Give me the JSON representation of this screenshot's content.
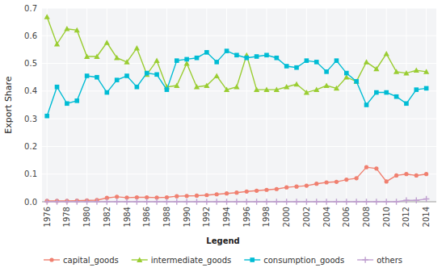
{
  "chart_data": {
    "type": "line",
    "ylabel": "Export Share",
    "x": [
      1976,
      1977,
      1978,
      1979,
      1980,
      1981,
      1982,
      1983,
      1984,
      1985,
      1986,
      1987,
      1988,
      1989,
      1990,
      1991,
      1992,
      1993,
      1994,
      1995,
      1996,
      1997,
      1998,
      1999,
      2000,
      2001,
      2002,
      2003,
      2004,
      2005,
      2006,
      2007,
      2008,
      2009,
      2010,
      2011,
      2012,
      2013,
      2014
    ],
    "series": [
      {
        "name": "capital_goods",
        "color": "#f08070",
        "marker": "circle",
        "values": [
          0.003,
          0.003,
          0.003,
          0.004,
          0.005,
          0.006,
          0.014,
          0.018,
          0.015,
          0.016,
          0.016,
          0.015,
          0.016,
          0.02,
          0.021,
          0.022,
          0.024,
          0.027,
          0.03,
          0.033,
          0.037,
          0.04,
          0.043,
          0.046,
          0.052,
          0.055,
          0.058,
          0.065,
          0.07,
          0.072,
          0.08,
          0.085,
          0.125,
          0.12,
          0.073,
          0.095,
          0.1,
          0.095,
          0.1
        ]
      },
      {
        "name": "intermediate_goods",
        "color": "#9acd32",
        "marker": "triangle",
        "values": [
          0.668,
          0.57,
          0.625,
          0.62,
          0.525,
          0.525,
          0.575,
          0.52,
          0.505,
          0.555,
          0.46,
          0.51,
          0.415,
          0.42,
          0.5,
          0.415,
          0.42,
          0.455,
          0.405,
          0.415,
          0.53,
          0.405,
          0.405,
          0.405,
          0.415,
          0.425,
          0.395,
          0.405,
          0.42,
          0.41,
          0.45,
          0.435,
          0.505,
          0.48,
          0.535,
          0.47,
          0.465,
          0.475,
          0.47
        ]
      },
      {
        "name": "consumption_goods",
        "color": "#00bcd4",
        "marker": "square",
        "values": [
          0.31,
          0.415,
          0.355,
          0.365,
          0.455,
          0.45,
          0.395,
          0.44,
          0.455,
          0.415,
          0.465,
          0.46,
          0.405,
          0.51,
          0.515,
          0.52,
          0.54,
          0.505,
          0.545,
          0.53,
          0.52,
          0.525,
          0.53,
          0.52,
          0.49,
          0.485,
          0.51,
          0.505,
          0.47,
          0.51,
          0.465,
          0.435,
          0.35,
          0.395,
          0.395,
          0.38,
          0.355,
          0.405,
          0.41
        ]
      },
      {
        "name": "others",
        "color": "#c0a0d0",
        "marker": "plus",
        "values": [
          0.0,
          0.0,
          0.0,
          0.0,
          0.0,
          0.0,
          0.0,
          0.0,
          0.0,
          0.0,
          0.0,
          0.0,
          0.0,
          0.0,
          0.0,
          0.0,
          0.0,
          0.0,
          0.0,
          0.0,
          0.0,
          0.0,
          0.0,
          0.0,
          0.0,
          0.0,
          0.0,
          0.0,
          0.0,
          0.0,
          0.0,
          0.0,
          0.0,
          0.0,
          0.0,
          0.0,
          0.005,
          0.005,
          0.01
        ]
      }
    ],
    "xlim": [
      1975.5,
      2015.0
    ],
    "xticks": [
      1976,
      1978,
      1980,
      1982,
      1984,
      1986,
      1988,
      1990,
      1992,
      1994,
      1996,
      1998,
      2000,
      2002,
      2004,
      2006,
      2008,
      2010,
      2012,
      2014
    ],
    "ylim": [
      0.0,
      0.7
    ],
    "yticks": [
      {
        "value": 0.0,
        "label": "0.0"
      },
      0.1,
      0.2,
      0.3,
      0.4,
      0.5,
      0.6,
      0.7
    ],
    "grid": true,
    "legend": "bottom",
    "legend_title": "Legend"
  }
}
